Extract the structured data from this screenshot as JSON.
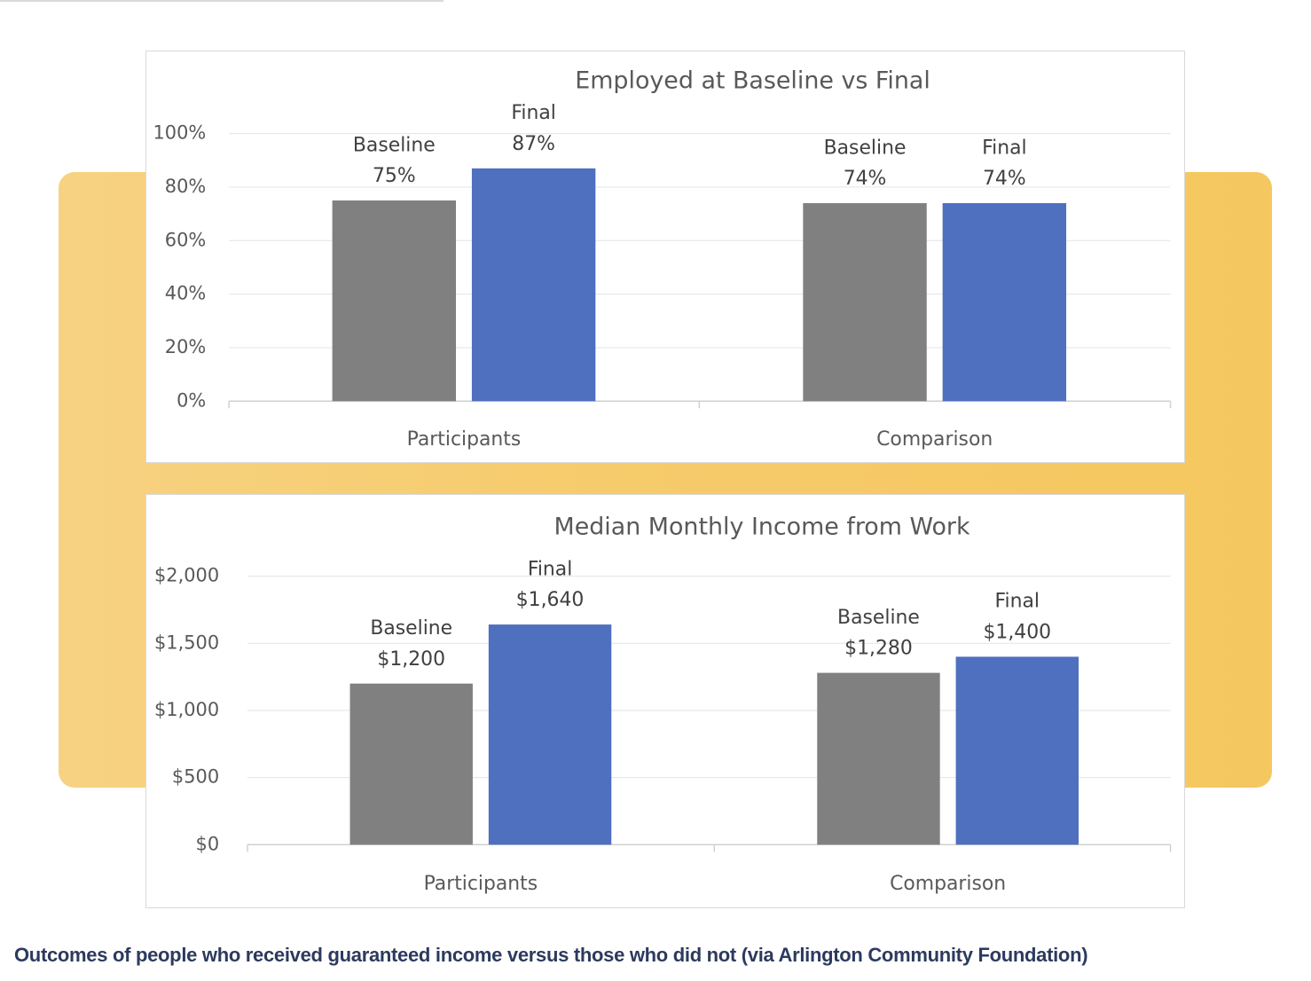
{
  "chart_data": [
    {
      "type": "bar",
      "title": "Employed at Baseline vs Final",
      "categories": [
        "Participants",
        "Comparison"
      ],
      "series": [
        {
          "name": "Baseline",
          "values": [
            75,
            74
          ],
          "labels": [
            "75%",
            "74%"
          ],
          "color": "#808080"
        },
        {
          "name": "Final",
          "values": [
            87,
            74
          ],
          "labels": [
            "87%",
            "74%"
          ],
          "color": "#4f6fbf"
        }
      ],
      "ylim": [
        0,
        100
      ],
      "yticks": [
        0,
        20,
        40,
        60,
        80,
        100
      ],
      "ytick_labels": [
        "0%",
        "20%",
        "40%",
        "60%",
        "80%",
        "100%"
      ],
      "grid": true,
      "xlabel": "",
      "ylabel": ""
    },
    {
      "type": "bar",
      "title": "Median Monthly Income from Work",
      "categories": [
        "Participants",
        "Comparison"
      ],
      "series": [
        {
          "name": "Baseline",
          "values": [
            1200,
            1280
          ],
          "labels": [
            "$1,200",
            "$1,280"
          ],
          "color": "#808080"
        },
        {
          "name": "Final",
          "values": [
            1640,
            1400
          ],
          "labels": [
            "$1,640",
            "$1,400"
          ],
          "color": "#4f6fbf"
        }
      ],
      "ylim": [
        0,
        2000
      ],
      "yticks": [
        0,
        500,
        1000,
        1500,
        2000
      ],
      "ytick_labels": [
        "$0",
        "$500",
        "$1,000",
        "$1,500",
        "$2,000"
      ],
      "grid": true,
      "xlabel": "",
      "ylabel": ""
    }
  ],
  "caption": "Outcomes of people who received guaranteed income versus those who did not (via Arlington Community Foundation)"
}
